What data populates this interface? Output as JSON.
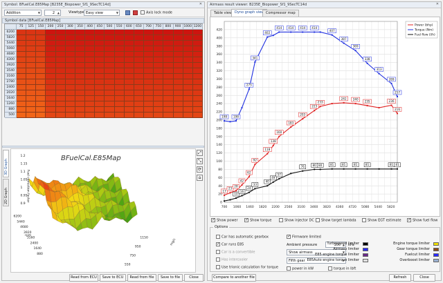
{
  "left": {
    "title": "Symbol: BFuelCal.E85Map [B235E_Biopower_Sf1_9SecTC14d]",
    "map_select": "Addition",
    "map_value": "2",
    "viewtype_label": "Viewtype",
    "viewtype_value": "Easy view",
    "axis_lock_label": "Axis lock mode",
    "symbol_data_label": "Symbol data [BFuelCal.E85Map]",
    "col_headers": [
      "75",
      "125",
      "150",
      "200",
      "250",
      "300",
      "350",
      "400",
      "450",
      "500",
      "550",
      "600",
      "650",
      "700",
      "750",
      "800",
      "900",
      "1000",
      "1200"
    ],
    "row_headers": [
      "6200",
      "5820",
      "5440",
      "5060",
      "4680",
      "4300",
      "3920",
      "3540",
      "3160",
      "2780",
      "2400",
      "2020",
      "1640",
      "1260",
      "880",
      "500"
    ],
    "tabs_3d": [
      "3D Graph",
      "2D Graph"
    ],
    "graph_title": "BFuelCal.E85Map",
    "z_label": "Fuel correction factor",
    "z_ticks": [
      "1.25",
      "1.2",
      "1.15",
      "1.1",
      "1.05",
      "1",
      "0.95",
      "0.9"
    ],
    "rpm_label": "rpm",
    "rpm_ticks": [
      "6200",
      "5440",
      "4680",
      "3920",
      "3160",
      "2400",
      "1640",
      "880"
    ],
    "mg_label": "mg/c",
    "mg_ticks": [
      "1150",
      "950",
      "750",
      "550",
      "350",
      "150",
      "75"
    ],
    "buttons": [
      "Read from ECU",
      "Save to ECU",
      "Read from file",
      "Save to file",
      "Close"
    ]
  },
  "right": {
    "title": "Airmass result viewer: B235E_Biopower_Sf1_9SecTC14d",
    "tabs": [
      "Table view",
      "Dyno graph view",
      "Compressor map"
    ],
    "legend": [
      {
        "label": "Power (bhp)",
        "color": "#e02020"
      },
      {
        "label": "Torque (Nm)",
        "color": "#1f2fe0"
      },
      {
        "label": "Fuel flow (l/h)",
        "color": "#111111"
      }
    ],
    "options_title": "Options",
    "buttons": [
      "Compare to another file",
      "Refresh",
      "Close"
    ],
    "ambient_label": "Ambient pressure",
    "ambient_value": "100",
    "ambient_unit": "kPa",
    "show_select": "Show airmass",
    "gear_select": "Fifth gear",
    "limiters_left": [
      {
        "label": "Turbospeed limiter",
        "color": "#000000"
      },
      {
        "label": "Airmass limiter",
        "color": "#2a2aff"
      },
      {
        "label": "E85 engine torque limiter",
        "color": "#6a2a8a"
      },
      {
        "label": "E85Auto engine torque limiter",
        "color": "#e0e0e0"
      }
    ],
    "limiters_right": [
      {
        "label": "Engine torque limiter",
        "color": "#f0e000"
      },
      {
        "label": "Gear torque limiter",
        "color": "#8a4a1a"
      },
      {
        "label": "Fuelcut limiter",
        "color": "#2a2aff"
      },
      {
        "label": "Overboost limiter",
        "color": "#9ab0d0"
      }
    ]
  },
  "checkboxes_row": [
    {
      "label": "Show power",
      "checked": true
    },
    {
      "label": "Show torque",
      "checked": true
    },
    {
      "label": "Show injector DC",
      "checked": false
    },
    {
      "label": "Show target lambda",
      "checked": false
    },
    {
      "label": "Show EGT estimate",
      "checked": false
    },
    {
      "label": "Show fuel flow",
      "checked": true
    }
  ],
  "options_checks": [
    {
      "label": "Car has automatic gearbox",
      "checked": false
    },
    {
      "label": "Car runs E85",
      "checked": true
    },
    {
      "label": "Car is a convertible",
      "checked": false
    },
    {
      "label": "Has intercooler",
      "checked": false
    },
    {
      "label": "Firmware limited",
      "checked": true
    },
    {
      "label": "Use trionic calculation for torque",
      "checked": false
    },
    {
      "label": "power in kW",
      "checked": false
    },
    {
      "label": "torque in lbft",
      "checked": false
    }
  ],
  "chart_data": {
    "type": "line",
    "x": [
      700,
      880,
      1060,
      1240,
      1420,
      1600,
      1780,
      1960,
      2140,
      2320,
      2500,
      2680,
      2860,
      3040,
      3220,
      3400,
      3580,
      3760,
      3940,
      4120,
      4300,
      4480,
      4660,
      4840,
      5020,
      5200,
      5380,
      5560,
      5740,
      5920
    ],
    "xticks": [
      "700",
      "880",
      "1060",
      "1240",
      "1420",
      "1640",
      "1820",
      "2020",
      "2200",
      "2380",
      "2560",
      "2740",
      "2920",
      "3100",
      "3280",
      "3460",
      "3640",
      "3820",
      "4000",
      "4180",
      "4360",
      "4540",
      "4720",
      "4900",
      "5080",
      "5260",
      "5440",
      "5620",
      "5800",
      "6000"
    ],
    "xticks_shown": [
      "700",
      "880",
      "1060",
      "1240",
      "1460",
      "1640",
      "1820",
      "2020",
      "2200",
      "2380",
      "2560",
      "2740",
      "3100",
      "3280",
      "3460",
      "3640",
      "3820",
      "4180",
      "4360",
      "4600",
      "4720",
      "4900",
      "5080",
      "5260",
      "5440",
      "5620",
      "5820",
      "6000"
    ],
    "ylim": [
      0,
      440
    ],
    "yticks": [
      "0",
      "20",
      "40",
      "60",
      "80",
      "100",
      "120",
      "140",
      "160",
      "180",
      "200",
      "220",
      "240",
      "260",
      "280",
      "300",
      "320",
      "340",
      "360",
      "380",
      "400",
      "420"
    ],
    "grid": true,
    "legend_position": "top-right",
    "series": [
      {
        "name": "Torque (Nm)",
        "color": "#1f2fe0",
        "x": [
          700,
          880,
          1060,
          1240,
          1460,
          1640,
          2020,
          2200,
          2380,
          2740,
          3100,
          3460,
          3640,
          4000,
          4360,
          4720,
          5080,
          5440,
          5820,
          6000
        ],
        "values": [
          198,
          196,
          198,
          230,
          275,
          341,
          402,
          406,
          414,
          414,
          414,
          414,
          414,
          407,
          387,
          369,
          338,
          313,
          289,
          257
        ],
        "labels": [
          "198",
          "",
          "198",
          "",
          "275",
          "341",
          "402",
          "",
          "414",
          "414",
          "414",
          "414",
          "",
          "407",
          "387",
          "369",
          "338",
          "313",
          "289",
          "257"
        ]
      },
      {
        "name": "Power (bhp)",
        "color": "#e02020",
        "x": [
          700,
          880,
          1060,
          1240,
          1460,
          1640,
          2020,
          2200,
          2380,
          2740,
          3100,
          3460,
          3640,
          4000,
          4360,
          4720,
          5080,
          5440,
          5820,
          6000
        ],
        "values": [
          17,
          23,
          28,
          42,
          62,
          92,
          118,
          138,
          160,
          183,
          203,
          223,
          233,
          240,
          242,
          240,
          235,
          230,
          236,
          216
        ],
        "labels": [
          "17",
          "23",
          "28",
          "42",
          "62",
          "92",
          "118",
          "138",
          "160",
          "183",
          "203",
          "223",
          "233",
          "",
          "242",
          "240",
          "235",
          "",
          "236",
          "216"
        ]
      },
      {
        "name": "Fuel flow (l/h)",
        "color": "#111111",
        "x": [
          700,
          880,
          1060,
          1240,
          1460,
          1640,
          2020,
          2200,
          2380,
          2740,
          3100,
          3460,
          3640,
          4000,
          4360,
          4720,
          5080,
          5440,
          5820,
          6000
        ],
        "values": [
          3,
          6,
          10,
          16,
          24,
          33,
          40,
          49,
          57,
          70,
          76,
          80,
          80,
          81,
          81,
          81,
          81,
          81,
          81,
          81
        ],
        "labels": [
          "",
          "",
          "10",
          "16",
          "24",
          "33",
          "40",
          "49",
          "57",
          "",
          "76",
          "80",
          "80",
          "81",
          "81",
          "81",
          "81",
          "",
          "81",
          "81"
        ]
      }
    ]
  }
}
